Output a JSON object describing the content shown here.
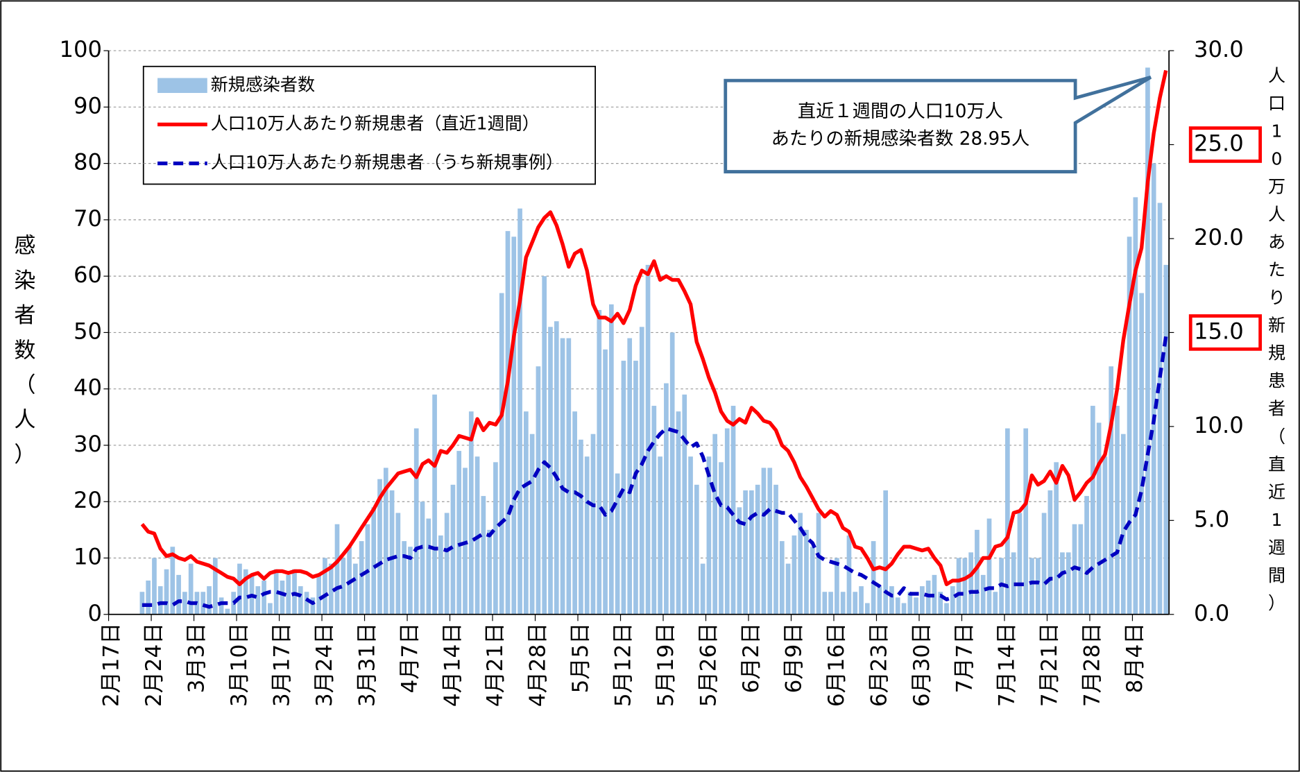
{
  "chart_data": {
    "type": "bar",
    "ylabel": "感染者数（人）",
    "y2label": "人口10万人あたり新規患者（直近1週間）",
    "annotation": [
      "直近１週間の人口10万人",
      "あたりの新規感染者数 28.95人"
    ],
    "grid": true,
    "legend": "upper left",
    "ylim": [
      0,
      100
    ],
    "yticks": [
      0,
      10,
      20,
      30,
      40,
      50,
      60,
      70,
      80,
      90,
      100
    ],
    "y2lim": [
      0,
      30
    ],
    "y2ticks": [
      {
        "value": 0,
        "label": "0.0"
      },
      {
        "value": 5,
        "label": "5.0"
      },
      {
        "value": 10,
        "label": "10.0"
      },
      {
        "value": 15,
        "label": "15.0"
      },
      {
        "value": 20,
        "label": "20.0"
      },
      {
        "value": 25,
        "label": "25.0"
      },
      {
        "value": 30,
        "label": "30.0"
      }
    ],
    "categories": [
      "2月17日",
      null,
      null,
      null,
      null,
      null,
      null,
      "2月24日",
      null,
      null,
      null,
      null,
      null,
      null,
      "3月3日",
      null,
      null,
      null,
      null,
      null,
      null,
      "3月10日",
      null,
      null,
      null,
      null,
      null,
      null,
      "3月17日",
      null,
      null,
      null,
      null,
      null,
      null,
      "3月24日",
      null,
      null,
      null,
      null,
      null,
      null,
      "3月31日",
      null,
      null,
      null,
      null,
      null,
      null,
      "4月7日",
      null,
      null,
      null,
      null,
      null,
      null,
      "4月14日",
      null,
      null,
      null,
      null,
      null,
      null,
      "4月21日",
      null,
      null,
      null,
      null,
      null,
      null,
      "4月28日",
      null,
      null,
      null,
      null,
      null,
      null,
      "5月5日",
      null,
      null,
      null,
      null,
      null,
      null,
      "5月12日",
      null,
      null,
      null,
      null,
      null,
      null,
      "5月19日",
      null,
      null,
      null,
      null,
      null,
      null,
      "5月26日",
      null,
      null,
      null,
      null,
      null,
      null,
      "6月2日",
      null,
      null,
      null,
      null,
      null,
      null,
      "6月9日",
      null,
      null,
      null,
      null,
      null,
      null,
      "6月16日",
      null,
      null,
      null,
      null,
      null,
      null,
      "6月23日",
      null,
      null,
      null,
      null,
      null,
      null,
      "6月30日",
      null,
      null,
      null,
      null,
      null,
      null,
      "7月7日",
      null,
      null,
      null,
      null,
      null,
      null,
      "7月14日",
      null,
      null,
      null,
      null,
      null,
      null,
      "7月21日",
      null,
      null,
      null,
      null,
      null,
      null,
      "7月28日",
      null,
      null,
      null,
      null,
      null,
      null,
      "8月4日",
      null,
      null,
      null,
      null,
      null
    ],
    "series": [
      {
        "name": "新規感染者数",
        "type": "bar",
        "color": "#9dc3e6",
        "values": [
          null,
          null,
          null,
          null,
          null,
          4,
          6,
          10,
          5,
          8,
          12,
          7,
          4,
          9,
          4,
          4,
          5,
          10,
          3,
          1,
          4,
          9,
          8,
          7,
          5,
          6,
          2,
          8,
          6,
          7,
          8,
          5,
          4,
          3,
          7,
          10,
          9,
          16,
          10,
          12,
          9,
          13,
          16,
          19,
          24,
          26,
          22,
          18,
          13,
          12,
          33,
          20,
          17,
          39,
          14,
          18,
          23,
          29,
          26,
          36,
          28,
          21,
          15,
          27,
          57,
          68,
          67,
          72,
          36,
          32,
          44,
          60,
          51,
          52,
          49,
          49,
          36,
          31,
          28,
          32,
          54,
          47,
          55,
          25,
          45,
          49,
          45,
          51,
          62,
          37,
          28,
          41,
          50,
          36,
          39,
          28,
          23,
          9,
          28,
          32,
          27,
          33,
          37,
          19,
          22,
          22,
          23,
          26,
          26,
          23,
          13,
          9,
          14,
          18,
          15,
          12,
          18,
          4,
          4,
          10,
          4,
          14,
          4,
          5,
          2,
          13,
          5,
          22,
          5,
          3,
          2,
          4,
          3,
          5,
          6,
          7,
          4,
          2,
          5,
          10,
          10,
          11,
          15,
          7,
          17,
          4,
          10,
          33,
          11,
          18,
          33,
          10,
          10,
          18,
          22,
          27,
          11,
          11,
          16,
          16,
          21,
          37,
          34,
          28,
          44,
          37,
          32,
          67,
          74,
          57,
          97,
          80,
          73,
          62
        ]
      },
      {
        "name": "人口10万人あたり新規患者（直近1週間）",
        "type": "line",
        "axis": "y2",
        "color": "#ff0000",
        "dash": false,
        "values": [
          null,
          null,
          null,
          null,
          null,
          4.8,
          4.4,
          4.3,
          3.5,
          3.1,
          3.2,
          3.0,
          2.9,
          3.1,
          2.8,
          2.7,
          2.6,
          2.4,
          2.2,
          2.0,
          1.9,
          1.6,
          1.9,
          2.1,
          2.2,
          1.9,
          2.2,
          2.3,
          2.3,
          2.2,
          2.3,
          2.3,
          2.2,
          2.0,
          2.1,
          2.3,
          2.5,
          2.8,
          3.2,
          3.6,
          4.1,
          4.6,
          5.1,
          5.6,
          6.2,
          6.7,
          7.1,
          7.5,
          7.6,
          7.7,
          7.3,
          8.0,
          8.2,
          7.9,
          8.7,
          8.6,
          9.0,
          9.5,
          9.4,
          9.3,
          10.4,
          9.8,
          10.2,
          10.1,
          10.6,
          12.4,
          14.8,
          16.7,
          19.0,
          19.8,
          20.6,
          21.1,
          21.4,
          20.7,
          19.7,
          18.5,
          19.2,
          19.4,
          18.3,
          16.5,
          15.8,
          15.8,
          15.6,
          16.0,
          15.5,
          16.2,
          17.5,
          18.3,
          18.1,
          18.8,
          17.8,
          18.0,
          17.8,
          17.8,
          17.2,
          16.5,
          14.5,
          13.6,
          12.6,
          11.8,
          10.8,
          10.3,
          10.1,
          10.4,
          10.2,
          11.0,
          10.7,
          10.3,
          10.2,
          9.8,
          9.0,
          8.7,
          8.1,
          7.3,
          6.8,
          6.2,
          5.6,
          5.2,
          5.5,
          5.3,
          4.6,
          4.4,
          3.6,
          3.5,
          3.0,
          2.4,
          2.5,
          2.4,
          2.7,
          3.2,
          3.6,
          3.6,
          3.5,
          3.4,
          3.5,
          3.0,
          2.6,
          1.6,
          1.8,
          1.8,
          1.9,
          2.1,
          2.5,
          3.0,
          3.0,
          3.6,
          3.7,
          4.1,
          5.4,
          5.5,
          5.9,
          7.4,
          6.9,
          7.1,
          7.6,
          7.0,
          7.9,
          7.4,
          6.1,
          6.5,
          7.0,
          7.3,
          8.0,
          8.5,
          10.1,
          12.0,
          14.6,
          16.5,
          18.3,
          19.5,
          23.0,
          25.6,
          27.5,
          28.95
        ]
      },
      {
        "name": "人口10万人あたり新規患者（うち新規事例）",
        "type": "line",
        "axis": "y2",
        "color": "#0000c0",
        "dash": true,
        "values": [
          null,
          null,
          null,
          null,
          null,
          0.5,
          0.5,
          0.5,
          0.6,
          0.6,
          0.5,
          0.7,
          0.7,
          0.6,
          0.6,
          0.5,
          0.4,
          0.5,
          0.6,
          0.6,
          0.6,
          0.9,
          0.9,
          1.0,
          0.9,
          1.1,
          1.2,
          1.2,
          1.1,
          1.0,
          1.1,
          1.0,
          0.8,
          0.6,
          0.8,
          1.0,
          1.2,
          1.4,
          1.5,
          1.7,
          1.9,
          2.1,
          2.3,
          2.5,
          2.7,
          2.9,
          3.0,
          3.1,
          3.1,
          3.0,
          3.5,
          3.6,
          3.6,
          3.5,
          3.5,
          3.4,
          3.6,
          3.7,
          3.8,
          3.9,
          4.1,
          4.3,
          4.2,
          4.6,
          4.9,
          5.2,
          6.1,
          6.7,
          6.9,
          7.1,
          7.7,
          8.1,
          7.8,
          7.3,
          6.7,
          6.5,
          6.5,
          6.3,
          6.0,
          5.8,
          5.8,
          5.3,
          5.5,
          6.1,
          6.7,
          6.5,
          7.5,
          8.0,
          8.7,
          9.2,
          9.6,
          9.9,
          9.8,
          9.7,
          9.3,
          8.9,
          9.1,
          8.4,
          7.4,
          6.4,
          5.8,
          5.7,
          5.3,
          4.9,
          4.8,
          5.2,
          5.4,
          5.3,
          5.6,
          5.5,
          5.4,
          5.4,
          5.0,
          4.6,
          4.1,
          3.8,
          3.1,
          2.9,
          2.8,
          2.7,
          2.6,
          2.4,
          2.2,
          2.1,
          1.9,
          1.7,
          1.5,
          1.2,
          1.0,
          1.0,
          1.4,
          1.1,
          1.1,
          1.1,
          1.0,
          1.0,
          1.0,
          0.8,
          0.9,
          1.1,
          1.1,
          1.2,
          1.2,
          1.3,
          1.4,
          1.4,
          1.6,
          1.5,
          1.6,
          1.6,
          1.6,
          1.7,
          1.7,
          1.6,
          1.9,
          1.9,
          2.2,
          2.3,
          2.5,
          2.4,
          2.2,
          2.5,
          2.7,
          2.9,
          3.1,
          3.3,
          4.4,
          4.9,
          5.3,
          6.6,
          8.5,
          10.3,
          12.6,
          14.8
        ]
      }
    ]
  }
}
